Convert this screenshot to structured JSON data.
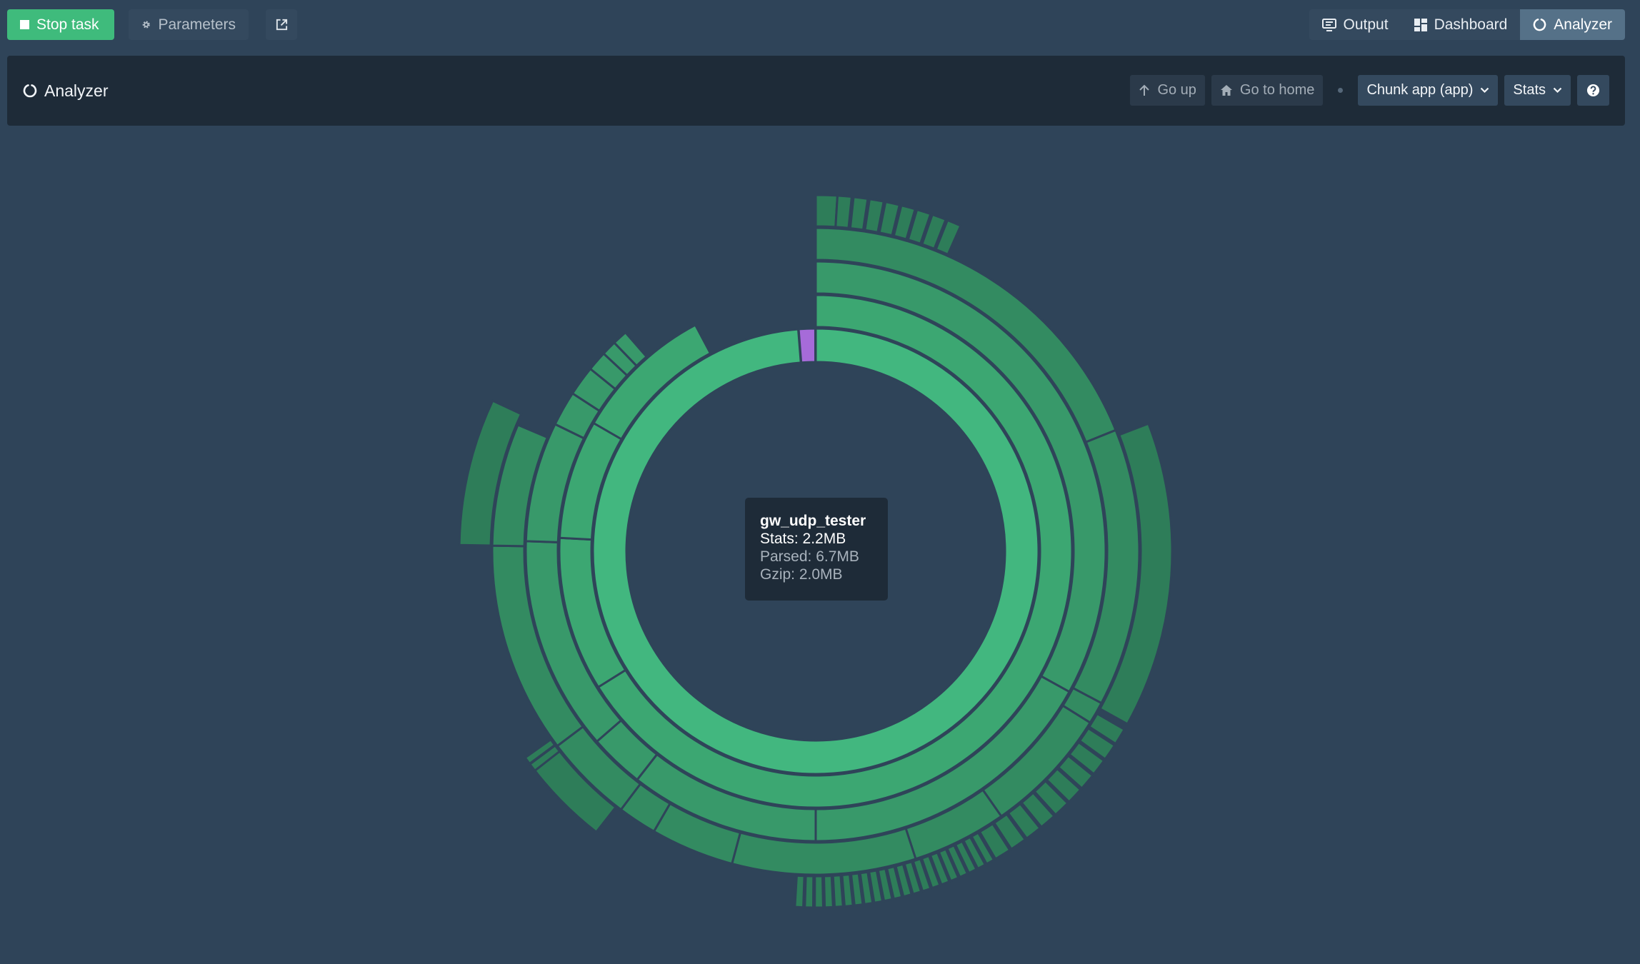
{
  "toolbar": {
    "stop_label": "Stop task",
    "params_label": "Parameters",
    "stop_icon": "stop-square-icon",
    "params_icon": "gear-icon",
    "external_icon": "external-link-icon"
  },
  "tabs": [
    {
      "label": "Output",
      "icon": "monitor-icon",
      "active": false
    },
    {
      "label": "Dashboard",
      "icon": "dashboard-grid-icon",
      "active": false
    },
    {
      "label": "Analyzer",
      "icon": "circle-notch-icon",
      "active": true
    }
  ],
  "panel": {
    "title": "Analyzer",
    "title_icon": "circle-notch-icon",
    "go_up": "Go up",
    "go_home": "Go to home",
    "chunk_select": "Chunk app (app)",
    "size_select": "Stats",
    "help_icon": "question-circle-icon"
  },
  "tooltip": {
    "name": "gw_udp_tester",
    "stats": "Stats: 2.2MB",
    "parsed": "Parsed: 6.7MB",
    "gzip": "Gzip: 2.0MB"
  },
  "colors": {
    "background": "#2f4459",
    "accent_green": "#3fbb7c",
    "ring1": "#42b77f",
    "ring2": "#3ca772",
    "ring3": "#38996a",
    "ring4": "#338b61",
    "ring5": "#2e7d59",
    "highlight": "#a66bd9"
  }
}
